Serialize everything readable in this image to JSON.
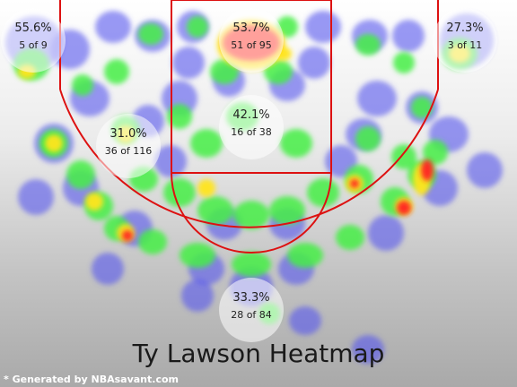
{
  "chart_data": {
    "type": "heatmap",
    "title": "Ty Lawson Heatmap",
    "zones": [
      {
        "zone": "left-corner-three",
        "pct": "55.6%",
        "made": 5,
        "att": 9,
        "label": "5 of 9"
      },
      {
        "zone": "restricted-area",
        "pct": "53.7%",
        "made": 51,
        "att": 95,
        "label": "51 of 95"
      },
      {
        "zone": "right-corner-three",
        "pct": "27.3%",
        "made": 3,
        "att": 11,
        "label": "3 of 11"
      },
      {
        "zone": "paint",
        "pct": "42.1%",
        "made": 16,
        "att": 38,
        "label": "16 of 38"
      },
      {
        "zone": "mid-range",
        "pct": "31.0%",
        "made": 36,
        "att": 116,
        "label": "36 of 116"
      },
      {
        "zone": "above-break-three",
        "pct": "33.3%",
        "made": 28,
        "att": 84,
        "label": "28 of 84"
      }
    ]
  },
  "footer": {
    "credit": "* Generated by NBAsavant.com"
  },
  "colors": {
    "court_lines": "#dd1111",
    "low": "#5555ee",
    "mid": "#44ee44",
    "high": "#ff2222"
  }
}
